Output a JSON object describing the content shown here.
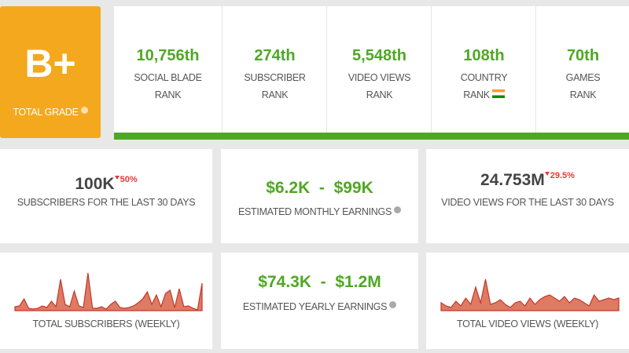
{
  "grade": {
    "value": "B+",
    "label": "TOTAL GRADE"
  },
  "ranks": [
    {
      "value": "10,756th",
      "label": [
        "SOCIAL BLADE",
        "RANK"
      ]
    },
    {
      "value": "274th",
      "label": [
        "SUBSCRIBER",
        "RANK"
      ]
    },
    {
      "value": "5,548th",
      "label": [
        "VIDEO VIEWS",
        "RANK"
      ]
    },
    {
      "value": "108th",
      "label": [
        "COUNTRY",
        "RANK"
      ]
    },
    {
      "value": "70th",
      "label": [
        "GAMES",
        "RANK"
      ]
    }
  ],
  "stats": [
    {
      "value": "100K",
      "change": "50%",
      "label": "SUBSCRIBERS FOR THE LAST 30 DAYS"
    },
    {
      "value": "$6.2K  -  $99K",
      "label": "ESTIMATED MONTHLY EARNINGS"
    },
    {
      "value": "24.753M",
      "change": "29.5%",
      "label": "VIDEO VIEWS FOR THE LAST 30 DAYS"
    },
    {
      "value": "$74.3K  -  $1.2M",
      "label": "ESTIMATED YEARLY EARNINGS"
    }
  ],
  "charts": [
    {
      "type": "area",
      "label": "TOTAL SUBSCRIBERS (WEEKLY)",
      "values": [
        5,
        6,
        15,
        3,
        2,
        3,
        6,
        4,
        12,
        5,
        40,
        8,
        5,
        25,
        6,
        4,
        48,
        3,
        3,
        5,
        2,
        8,
        12,
        4,
        3,
        4,
        6,
        10,
        15,
        24,
        8,
        20,
        5,
        22,
        26,
        4,
        28,
        5,
        6,
        3,
        1,
        35
      ]
    },
    {
      "type": "area",
      "label": "TOTAL VIDEO VIEWS (WEEKLY)",
      "values": [
        10,
        6,
        4,
        12,
        6,
        16,
        8,
        30,
        10,
        40,
        8,
        10,
        14,
        8,
        4,
        10,
        12,
        6,
        16,
        8,
        14,
        18,
        20,
        16,
        12,
        18,
        10,
        16,
        14,
        10,
        6,
        20,
        12,
        14,
        16,
        14,
        16
      ]
    }
  ]
}
